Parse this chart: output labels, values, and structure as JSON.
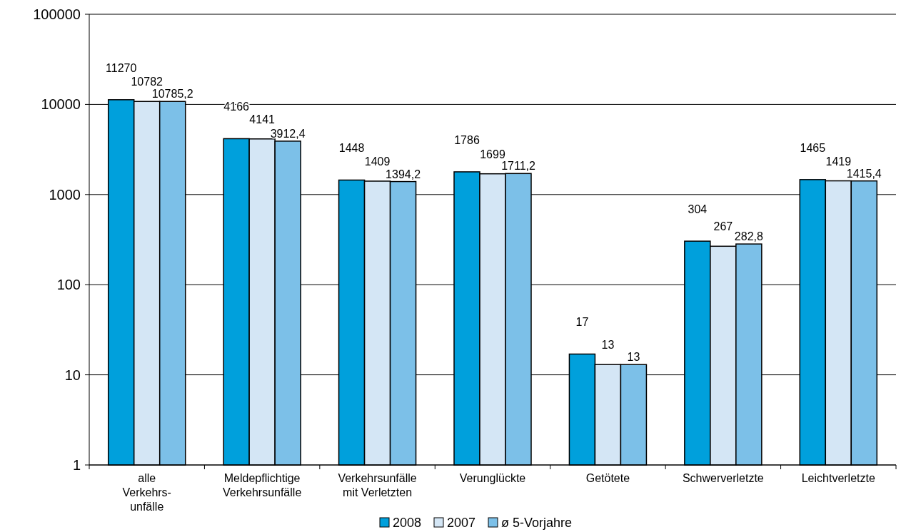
{
  "chart_data": {
    "type": "bar",
    "categories": [
      "alle\nVerkehrs-\nunfälle",
      "Meldepflichtige\nVerkehrsunfälle",
      "Verkehrsunfälle\nmit Verletzten",
      "Verunglückte",
      "Getötete",
      "Schwerverletzte",
      "Leichtverletzte"
    ],
    "series": [
      {
        "name": "2008",
        "color": "#00a0dc",
        "values": [
          11270,
          4166,
          1448,
          1786,
          17,
          304,
          1465
        ],
        "value_labels": [
          "11270",
          "4166",
          "1448",
          "1786",
          "17",
          "304",
          "1465"
        ]
      },
      {
        "name": "2007",
        "color": "#d4e6f5",
        "values": [
          10782,
          4141,
          1409,
          1699,
          13,
          267,
          1419
        ],
        "value_labels": [
          "10782",
          "4141",
          "1409",
          "1699",
          "13",
          "267",
          "1419"
        ]
      },
      {
        "name": "ø 5-Vorjahre",
        "color": "#7cc0e8",
        "values": [
          10785.2,
          3912.4,
          1394.2,
          1711.2,
          13,
          282.8,
          1415.4
        ],
        "value_labels": [
          "10785,2",
          "3912,4",
          "1394,2",
          "1711,2",
          "13",
          "282,8",
          "1415,4"
        ]
      }
    ],
    "log": true,
    "ylim": [
      1,
      100000
    ],
    "yticks": [
      1,
      10,
      100,
      1000,
      10000,
      100000
    ],
    "grid": "y",
    "legend": "bottom"
  }
}
